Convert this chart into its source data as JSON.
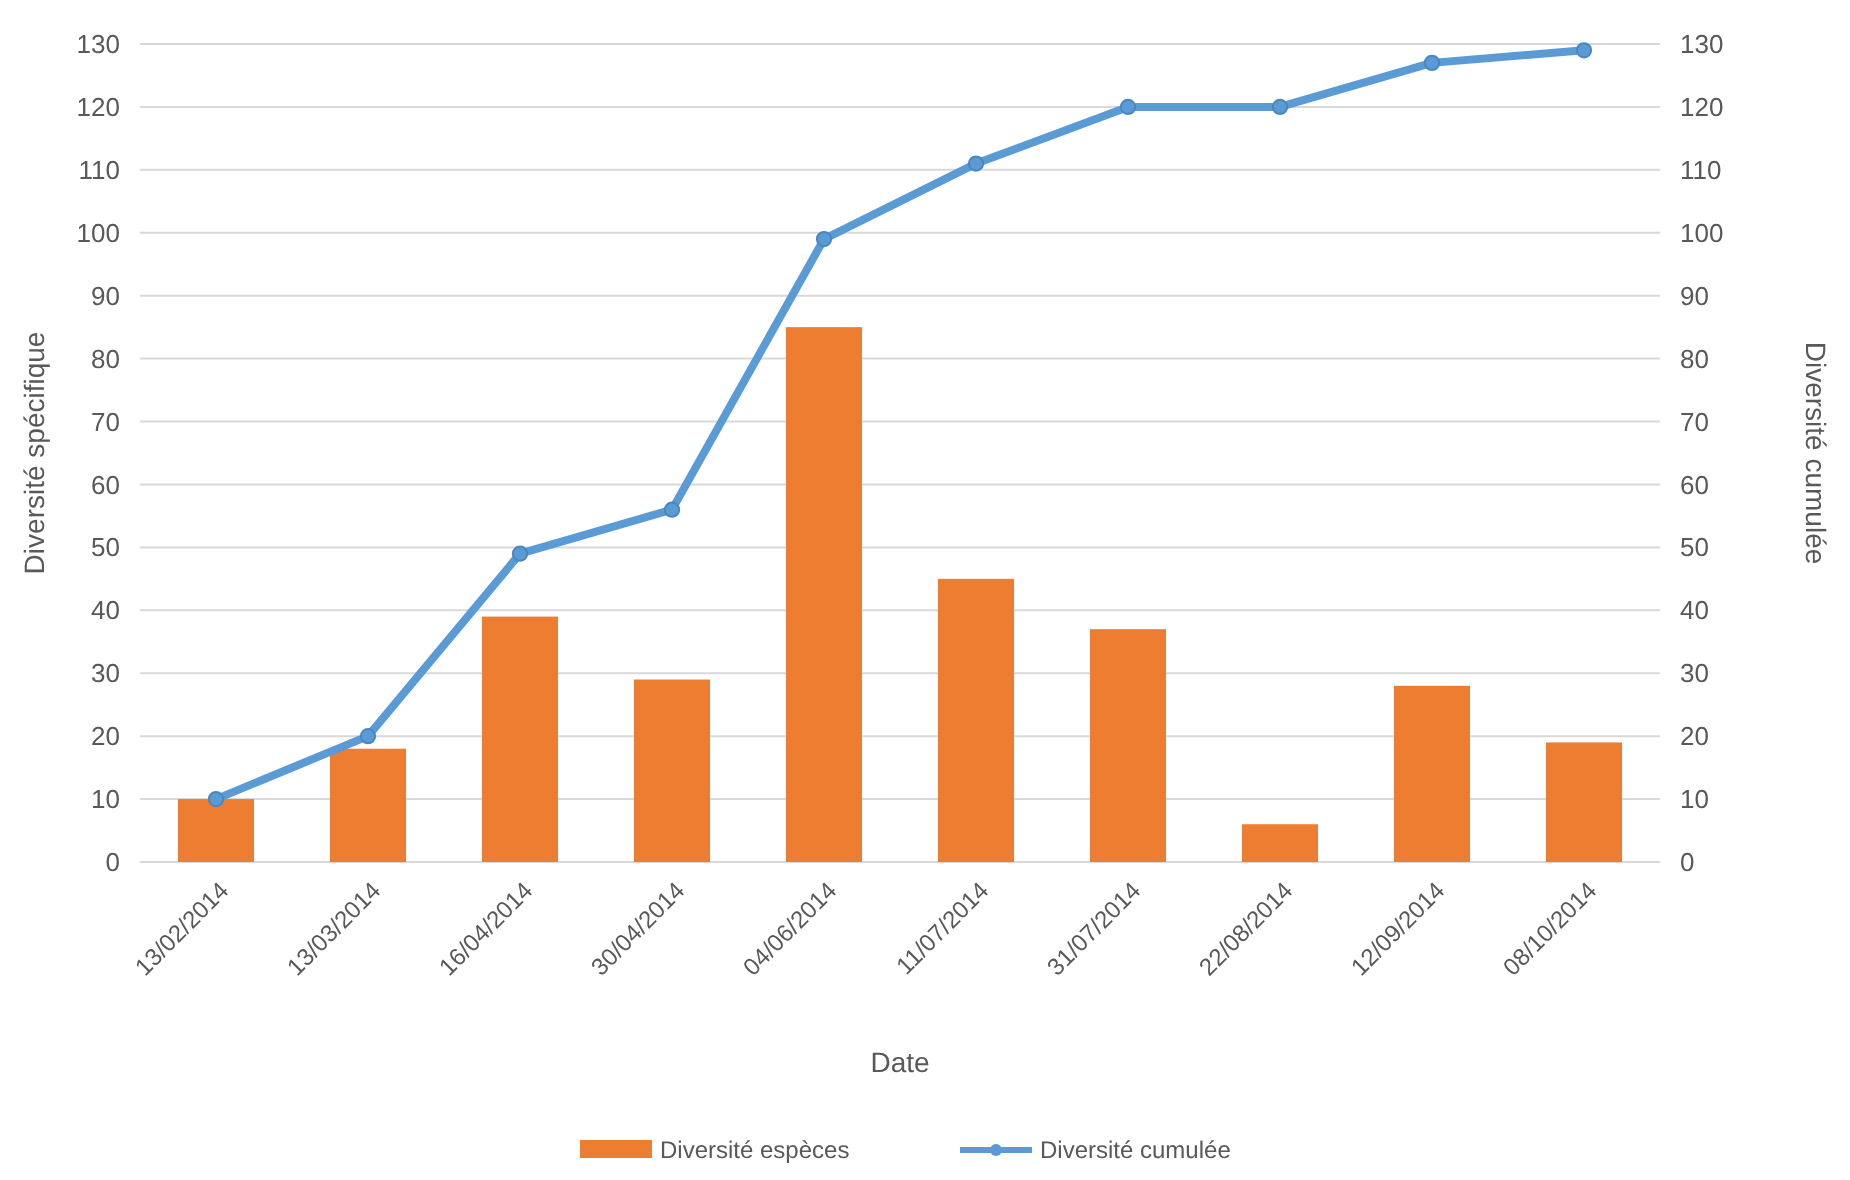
{
  "chart_data": {
    "type": "bar",
    "xlabel": "Date",
    "ylabel": "Diversité spécifique",
    "y2label": "Diversité cumulée",
    "categories": [
      "13/02/2014",
      "13/03/2014",
      "16/04/2014",
      "30/04/2014",
      "04/06/2014",
      "11/07/2014",
      "31/07/2014",
      "22/08/2014",
      "12/09/2014",
      "08/10/2014"
    ],
    "series": [
      {
        "name": "Diversité espèces",
        "color": "#ed7d31",
        "values": [
          10,
          18,
          39,
          29,
          85,
          45,
          37,
          6,
          28,
          19
        ]
      },
      {
        "name": "Diversité cumulée",
        "type": "line",
        "axis": "y2",
        "color": "#5b9bd5",
        "marker": "circle",
        "values": [
          10,
          20,
          49,
          56,
          99,
          111,
          120,
          120,
          127,
          129
        ]
      }
    ],
    "ylim": [
      0,
      130
    ],
    "yticks": [
      0,
      10,
      20,
      30,
      40,
      50,
      60,
      70,
      80,
      90,
      100,
      110,
      120,
      130
    ],
    "y2lim": [
      0,
      130
    ],
    "y2ticks": [
      0,
      10,
      20,
      30,
      40,
      50,
      60,
      70,
      80,
      90,
      100,
      110,
      120,
      130
    ],
    "grid": "y",
    "legend": "bottom"
  }
}
